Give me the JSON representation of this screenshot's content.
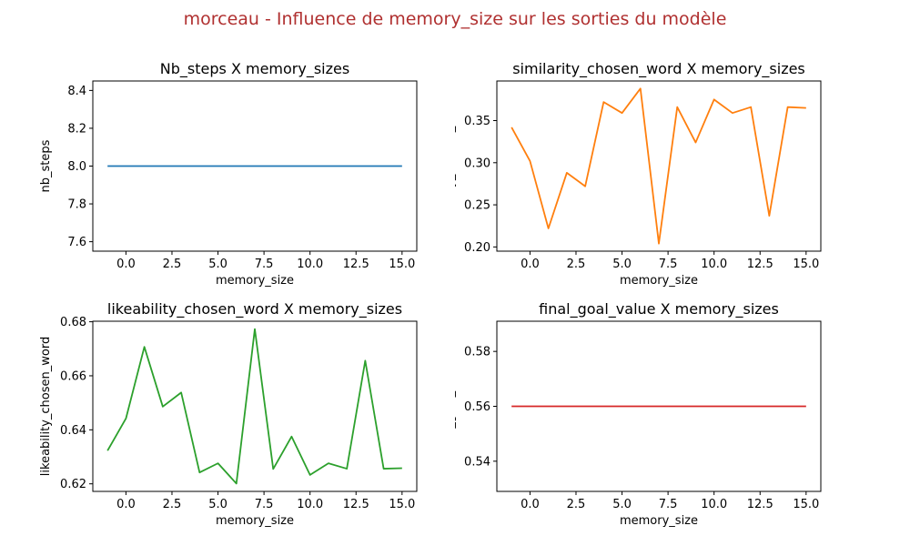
{
  "suptitle": "morceau - Influence de memory_size sur les sorties du modèle",
  "suptitle_color": "#b03030",
  "chart_data": [
    {
      "type": "line",
      "title": "Nb_steps X memory_sizes",
      "xlabel": "memory_size",
      "ylabel": "nb_steps",
      "color": "#1f77b4",
      "x": [
        -1,
        0,
        1,
        2,
        3,
        4,
        5,
        6,
        7,
        8,
        9,
        10,
        11,
        12,
        13,
        14,
        15
      ],
      "y": [
        8.0,
        8.0,
        8.0,
        8.0,
        8.0,
        8.0,
        8.0,
        8.0,
        8.0,
        8.0,
        8.0,
        8.0,
        8.0,
        8.0,
        8.0,
        8.0,
        8.0
      ],
      "xlim": [
        -1.8,
        15.8
      ],
      "ylim": [
        7.55,
        8.45
      ],
      "xticks": [
        0.0,
        2.5,
        5.0,
        7.5,
        10.0,
        12.5,
        15.0
      ],
      "xtick_labels": [
        "0.0",
        "2.5",
        "5.0",
        "7.5",
        "10.0",
        "12.5",
        "15.0"
      ],
      "yticks": [
        7.6,
        7.8,
        8.0,
        8.2,
        8.4
      ],
      "ytick_labels": [
        "7.6",
        "7.8",
        "8.0",
        "8.2",
        "8.4"
      ]
    },
    {
      "type": "line",
      "title": "similarity_chosen_word X memory_sizes",
      "xlabel": "memory_size",
      "ylabel": "similarity_chosen_word",
      "color": "#ff7f0e",
      "x": [
        -1,
        0,
        1,
        2,
        3,
        4,
        5,
        6,
        7,
        8,
        9,
        10,
        11,
        12,
        13,
        14,
        15
      ],
      "y": [
        0.342,
        0.302,
        0.222,
        0.288,
        0.272,
        0.372,
        0.359,
        0.388,
        0.204,
        0.366,
        0.324,
        0.375,
        0.359,
        0.366,
        0.237,
        0.366,
        0.365
      ],
      "xlim": [
        -1.8,
        15.8
      ],
      "ylim": [
        0.195,
        0.397
      ],
      "xticks": [
        0.0,
        2.5,
        5.0,
        7.5,
        10.0,
        12.5,
        15.0
      ],
      "xtick_labels": [
        "0.0",
        "2.5",
        "5.0",
        "7.5",
        "10.0",
        "12.5",
        "15.0"
      ],
      "yticks": [
        0.2,
        0.25,
        0.3,
        0.35
      ],
      "ytick_labels": [
        "0.20",
        "0.25",
        "0.30",
        "0.35"
      ]
    },
    {
      "type": "line",
      "title": "likeability_chosen_word X memory_sizes",
      "xlabel": "memory_size",
      "ylabel": "likeability_chosen_word",
      "color": "#2ca02c",
      "x": [
        -1,
        0,
        1,
        2,
        3,
        4,
        5,
        6,
        7,
        8,
        9,
        10,
        11,
        12,
        13,
        14,
        15
      ],
      "y": [
        0.6323,
        0.6442,
        0.6707,
        0.6486,
        0.6538,
        0.6242,
        0.6276,
        0.6201,
        0.6773,
        0.6255,
        0.6375,
        0.6233,
        0.6276,
        0.6256,
        0.6656,
        0.6256,
        0.6258
      ],
      "xlim": [
        -1.8,
        15.8
      ],
      "ylim": [
        0.6172,
        0.6802
      ],
      "xticks": [
        0.0,
        2.5,
        5.0,
        7.5,
        10.0,
        12.5,
        15.0
      ],
      "xtick_labels": [
        "0.0",
        "2.5",
        "5.0",
        "7.5",
        "10.0",
        "12.5",
        "15.0"
      ],
      "yticks": [
        0.62,
        0.64,
        0.66,
        0.68
      ],
      "ytick_labels": [
        "0.62",
        "0.64",
        "0.66",
        "0.68"
      ]
    },
    {
      "type": "line",
      "title": "final_goal_value X memory_sizes",
      "xlabel": "memory_size",
      "ylabel": "final_goal_value",
      "color": "#d62728",
      "x": [
        -1,
        0,
        1,
        2,
        3,
        4,
        5,
        6,
        7,
        8,
        9,
        10,
        11,
        12,
        13,
        14,
        15
      ],
      "y": [
        0.56,
        0.56,
        0.56,
        0.56,
        0.56,
        0.56,
        0.56,
        0.56,
        0.56,
        0.56,
        0.56,
        0.56,
        0.56,
        0.56,
        0.56,
        0.56,
        0.56
      ],
      "xlim": [
        -1.8,
        15.8
      ],
      "ylim": [
        0.529,
        0.591
      ],
      "xticks": [
        0.0,
        2.5,
        5.0,
        7.5,
        10.0,
        12.5,
        15.0
      ],
      "xtick_labels": [
        "0.0",
        "2.5",
        "5.0",
        "7.5",
        "10.0",
        "12.5",
        "15.0"
      ],
      "yticks": [
        0.54,
        0.56,
        0.58
      ],
      "ytick_labels": [
        "0.54",
        "0.56",
        "0.58"
      ]
    }
  ]
}
